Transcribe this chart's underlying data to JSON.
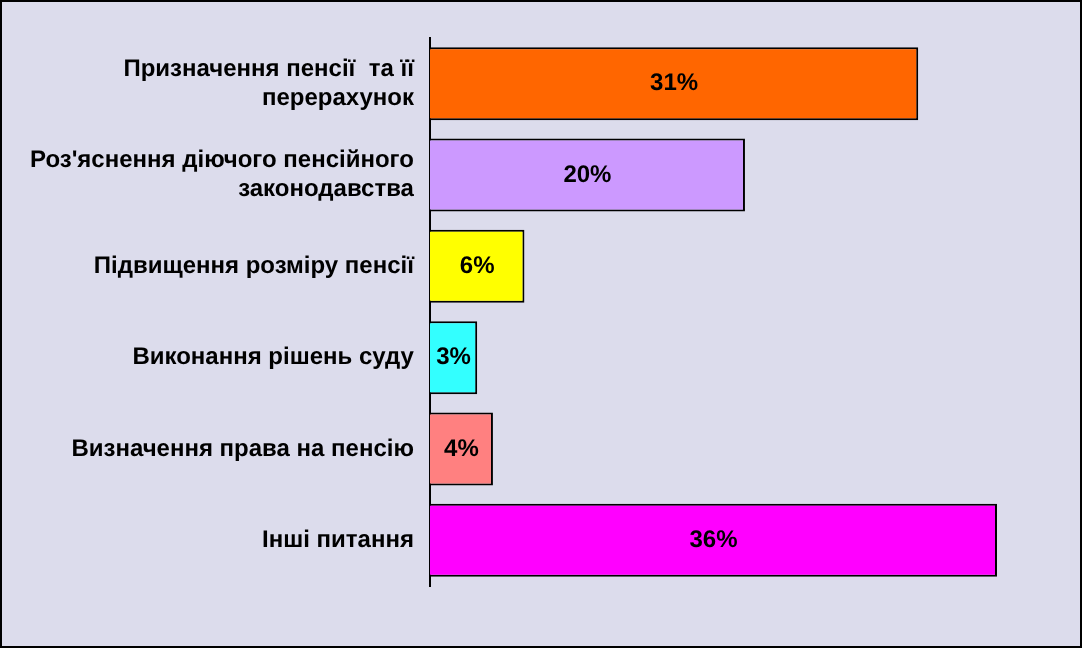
{
  "chart_data": {
    "type": "bar",
    "orientation": "horizontal",
    "categories": [
      "Призначення пенсії  та її перерахунок",
      "Роз'яснення діючого пенсійного законодавства",
      "Підвищення розміру пенсії",
      "Виконання рішень суду",
      "Визначення права на пенсію",
      "Інші питання"
    ],
    "values": [
      31,
      20,
      6,
      3,
      4,
      36
    ],
    "colors": [
      "#ff6600",
      "#cc99ff",
      "#ffff00",
      "#33ffff",
      "#ff8080",
      "#ff00ff"
    ],
    "value_labels": [
      "31%",
      "20%",
      "6%",
      "3%",
      "4%",
      "36%"
    ],
    "grid": false,
    "legend": false
  }
}
